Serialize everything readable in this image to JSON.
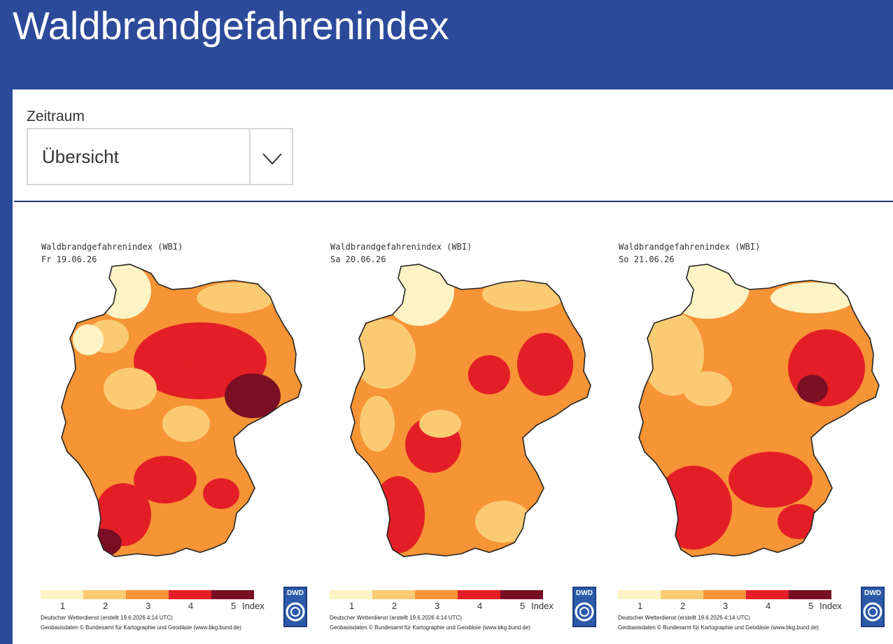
{
  "page": {
    "title": "Waldbrandgefahrenindex"
  },
  "filter": {
    "label": "Zeitraum",
    "selected": "Übersicht"
  },
  "legend": {
    "colors": [
      "#fdf3c4",
      "#fbcb74",
      "#f69436",
      "#e41e26",
      "#7a0f24"
    ],
    "ticks": [
      "1",
      "2",
      "3",
      "4",
      "5"
    ],
    "unit": "Index"
  },
  "maps": [
    {
      "heading": "Waldbrandgefahrenindex (WBI)",
      "date": "Fr 19.06.26",
      "credit1": "Deutscher Wetterdienst (erstellt 19.6.2026 4:14 UTC)",
      "credit2": "Geobasisdaten © Bundesamt für Kartographie und Geodäsie (www.bkg.bund.de)",
      "logo": "DWD"
    },
    {
      "heading": "Waldbrandgefahrenindex (WBI)",
      "date": "Sa 20.06.26",
      "credit1": "Deutscher Wetterdienst (erstellt 19.6.2026 4:14 UTC)",
      "credit2": "Geobasisdaten © Bundesamt für Kartographie und Geodäsie (www.bkg.bund.de)",
      "logo": "DWD"
    },
    {
      "heading": "Waldbrandgefahrenindex (WBI)",
      "date": "So 21.06.26",
      "credit1": "Deutscher Wetterdienst (erstellt 19.6.2026 4:14 UTC)",
      "credit2": "Geobasisdaten © Bundesamt für Kartographie und Geodäsie (www.bkg.bund.de)",
      "logo": "DWD"
    }
  ]
}
